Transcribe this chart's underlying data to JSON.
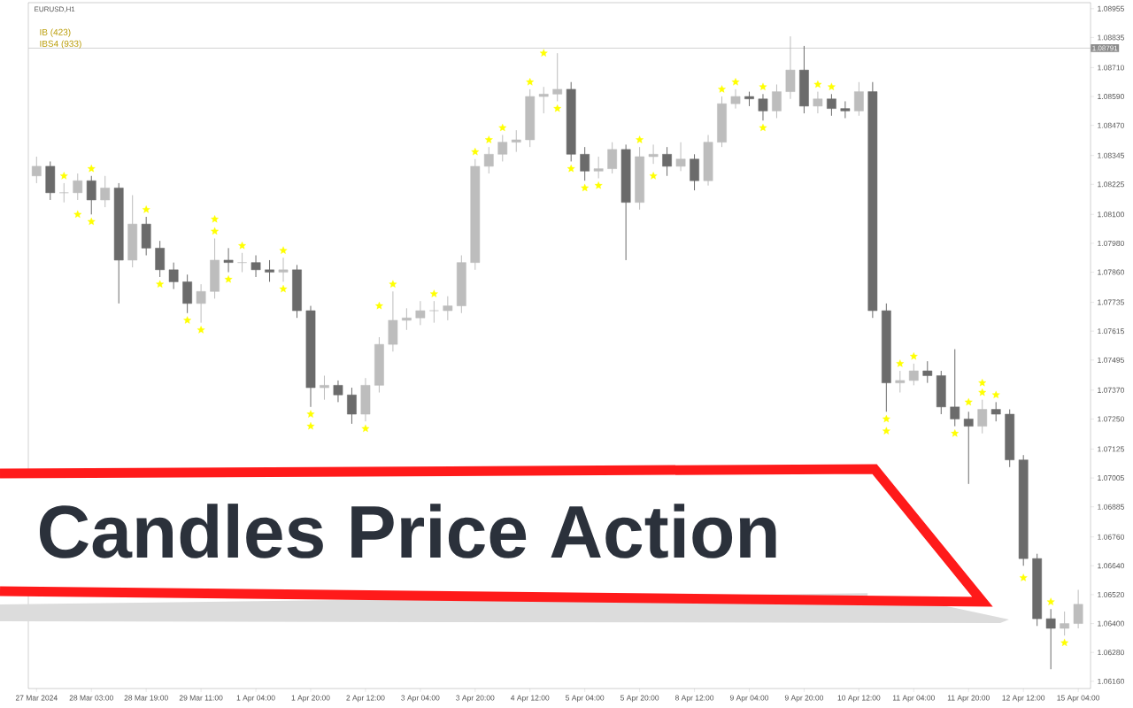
{
  "chart_data": {
    "type": "candlestick",
    "title": "EURUSD,H1",
    "annotations": [
      "IB (423)",
      "IBS4 (933)",
      "Candles Price Action"
    ],
    "categories": [
      "27 Mar 2024",
      null,
      null,
      null,
      "28 Mar 03:00",
      null,
      null,
      null,
      "28 Mar 19:00",
      null,
      null,
      null,
      "29 Mar 11:00",
      null,
      null,
      null,
      "1 Apr 04:00",
      null,
      null,
      null,
      "1 Apr 20:00",
      null,
      null,
      null,
      "2 Apr 12:00",
      null,
      null,
      null,
      "3 Apr 04:00",
      null,
      null,
      null,
      "3 Apr 20:00",
      null,
      null,
      null,
      "4 Apr 12:00",
      null,
      null,
      null,
      "5 Apr 04:00",
      null,
      null,
      null,
      "5 Apr 20:00",
      null,
      null,
      null,
      "8 Apr 12:00",
      null,
      null,
      null,
      "9 Apr 04:00",
      null,
      null,
      null,
      "9 Apr 20:00",
      null,
      null,
      null,
      "10 Apr 12:00",
      null,
      null,
      null,
      "11 Apr 04:00",
      null,
      null,
      null,
      "11 Apr 20:00",
      null,
      null,
      null,
      "12 Apr 12:00",
      null,
      null,
      null,
      "15 Apr 04:00"
    ],
    "ohlc": [
      [
        1.0826,
        1.0834,
        1.0823,
        1.083
      ],
      [
        1.083,
        1.0832,
        1.0816,
        1.0819
      ],
      [
        1.0819,
        1.0823,
        1.0815,
        1.0819
      ],
      [
        1.0819,
        1.0827,
        1.0816,
        1.0824
      ],
      [
        1.0824,
        1.0826,
        1.081,
        1.0816
      ],
      [
        1.0816,
        1.0826,
        1.0813,
        1.0821
      ],
      [
        1.0821,
        1.0823,
        1.0773,
        1.0791
      ],
      [
        1.0791,
        1.0818,
        1.0788,
        1.0806
      ],
      [
        1.0806,
        1.0809,
        1.0793,
        1.0796
      ],
      [
        1.0796,
        1.0799,
        1.0784,
        1.0787
      ],
      [
        1.0787,
        1.079,
        1.0779,
        1.0782
      ],
      [
        1.0782,
        1.0785,
        1.0769,
        1.0773
      ],
      [
        1.0773,
        1.0781,
        1.0765,
        1.0778
      ],
      [
        1.0778,
        1.08,
        1.0775,
        1.0791
      ],
      [
        1.0791,
        1.0796,
        1.0786,
        1.079
      ],
      [
        1.079,
        1.0794,
        1.0786,
        1.079
      ],
      [
        1.079,
        1.0793,
        1.0784,
        1.0787
      ],
      [
        1.0787,
        1.0791,
        1.0782,
        1.0786
      ],
      [
        1.0786,
        1.0792,
        1.0782,
        1.0787
      ],
      [
        1.0787,
        1.0789,
        1.0767,
        1.077
      ],
      [
        1.077,
        1.0772,
        1.073,
        1.0738
      ],
      [
        1.0738,
        1.0743,
        1.0733,
        1.0739
      ],
      [
        1.0739,
        1.0741,
        1.0732,
        1.0735
      ],
      [
        1.0735,
        1.0738,
        1.0723,
        1.0727
      ],
      [
        1.0727,
        1.0742,
        1.0724,
        1.0739
      ],
      [
        1.0739,
        1.0759,
        1.0736,
        1.0756
      ],
      [
        1.0756,
        1.0778,
        1.0753,
        1.0766
      ],
      [
        1.0766,
        1.0771,
        1.0762,
        1.0767
      ],
      [
        1.0767,
        1.0774,
        1.0764,
        1.077
      ],
      [
        1.077,
        1.0774,
        1.0765,
        1.077
      ],
      [
        1.077,
        1.0776,
        1.0766,
        1.0772
      ],
      [
        1.0772,
        1.0793,
        1.0769,
        1.079
      ],
      [
        1.079,
        1.0833,
        1.0787,
        1.083
      ],
      [
        1.083,
        1.0838,
        1.0827,
        1.0835
      ],
      [
        1.0835,
        1.0843,
        1.0832,
        1.084
      ],
      [
        1.084,
        1.0845,
        1.0836,
        1.0841
      ],
      [
        1.0841,
        1.0862,
        1.0838,
        1.0859
      ],
      [
        1.0859,
        1.0863,
        1.0852,
        1.086
      ],
      [
        1.086,
        1.0877,
        1.0857,
        1.0862
      ],
      [
        1.0862,
        1.0865,
        1.0832,
        1.0835
      ],
      [
        1.0835,
        1.0838,
        1.0824,
        1.0828
      ],
      [
        1.0828,
        1.0834,
        1.0825,
        1.0829
      ],
      [
        1.0829,
        1.084,
        1.0827,
        1.0837
      ],
      [
        1.0837,
        1.0839,
        1.0791,
        1.0815
      ],
      [
        1.0815,
        1.0838,
        1.0812,
        1.0834
      ],
      [
        1.0834,
        1.0839,
        1.0831,
        1.0835
      ],
      [
        1.0835,
        1.0838,
        1.0826,
        1.083
      ],
      [
        1.083,
        1.084,
        1.0828,
        1.0833
      ],
      [
        1.0833,
        1.0835,
        1.082,
        1.0824
      ],
      [
        1.0824,
        1.0843,
        1.0822,
        1.084
      ],
      [
        1.084,
        1.0859,
        1.0838,
        1.0856
      ],
      [
        1.0856,
        1.0862,
        1.0854,
        1.0859
      ],
      [
        1.0859,
        1.0861,
        1.0855,
        1.0858
      ],
      [
        1.0858,
        1.086,
        1.0849,
        1.0853
      ],
      [
        1.0853,
        1.0864,
        1.085,
        1.0861
      ],
      [
        1.0861,
        1.0884,
        1.0858,
        1.087
      ],
      [
        1.087,
        1.088,
        1.0852,
        1.0855
      ],
      [
        1.0855,
        1.0861,
        1.0852,
        1.0858
      ],
      [
        1.0858,
        1.086,
        1.0851,
        1.0854
      ],
      [
        1.0854,
        1.0857,
        1.085,
        1.0853
      ],
      [
        1.0853,
        1.0865,
        1.0851,
        1.0861
      ],
      [
        1.0861,
        1.0865,
        1.0767,
        1.077
      ],
      [
        1.077,
        1.0773,
        1.0728,
        1.074
      ],
      [
        1.074,
        1.0745,
        1.0736,
        1.0741
      ],
      [
        1.0741,
        1.0748,
        1.0739,
        1.0745
      ],
      [
        1.0745,
        1.0749,
        1.074,
        1.0743
      ],
      [
        1.0743,
        1.0745,
        1.0727,
        1.073
      ],
      [
        1.073,
        1.0754,
        1.0722,
        1.0725
      ],
      [
        1.0725,
        1.0728,
        1.0698,
        1.0722
      ],
      [
        1.0722,
        1.0733,
        1.0719,
        1.0729
      ],
      [
        1.0729,
        1.0732,
        1.0724,
        1.0727
      ],
      [
        1.0727,
        1.0729,
        1.0705,
        1.0708
      ],
      [
        1.0708,
        1.071,
        1.0664,
        1.0667
      ],
      [
        1.0667,
        1.0669,
        1.0639,
        1.0642
      ],
      [
        1.0642,
        1.0646,
        1.0621,
        1.0638
      ],
      [
        1.0638,
        1.0645,
        1.0635,
        1.064
      ],
      [
        1.064,
        1.0654,
        1.0638,
        1.0648
      ]
    ],
    "series": [
      {
        "type": "scatter",
        "color": "#ffff00",
        "marker": "star",
        "values": [
          null,
          null,
          1.0826,
          1.081,
          1.0807,
          null,
          null,
          null,
          1.0812,
          1.0781,
          null,
          1.0766,
          1.0762,
          1.0803,
          1.0783,
          1.0797,
          null,
          null,
          1.0779,
          null,
          1.0727,
          null,
          null,
          null,
          1.0721,
          1.0772,
          1.0781,
          null,
          null,
          1.0777,
          null,
          null,
          1.0836,
          1.0841,
          1.0846,
          null,
          1.0865,
          1.0877,
          1.0854,
          1.0829,
          1.0821,
          1.0822,
          null,
          null,
          1.0841,
          1.0826,
          null,
          null,
          null,
          null,
          1.0862,
          1.0865,
          null,
          1.0863,
          null,
          null,
          null,
          1.0864,
          1.0863,
          null,
          null,
          null,
          1.0725,
          1.0748,
          1.0751,
          null,
          null,
          1.0719,
          1.0732,
          1.0736,
          1.0735,
          null,
          1.0659,
          null,
          1.0649,
          1.0632,
          null
        ]
      },
      {
        "type": "scatter",
        "color": "#ffff00",
        "marker": "star",
        "values": [
          null,
          null,
          null,
          null,
          1.0829,
          null,
          null,
          null,
          null,
          null,
          null,
          null,
          null,
          1.0808,
          null,
          null,
          null,
          null,
          1.0795,
          null,
          1.0722,
          null,
          null,
          null,
          null,
          null,
          null,
          null,
          null,
          null,
          null,
          null,
          null,
          null,
          null,
          null,
          null,
          null,
          null,
          null,
          null,
          null,
          null,
          null,
          null,
          null,
          null,
          null,
          null,
          null,
          null,
          null,
          null,
          1.0846,
          null,
          null,
          null,
          null,
          null,
          null,
          null,
          null,
          1.072,
          null,
          null,
          null,
          null,
          null,
          null,
          1.074,
          null,
          null,
          null,
          null,
          null,
          null,
          null
        ]
      }
    ],
    "ref_lines": [
      {
        "axis": "y",
        "value": 1.08791,
        "label": "1.08791",
        "color": "#c8c8c8"
      }
    ],
    "ylim": [
      1.0613,
      1.0898
    ],
    "yticks": [
      {
        "value": 1.08955,
        "label": "1.08955"
      },
      {
        "value": 1.08835,
        "label": "1.08835"
      },
      {
        "value": 1.0871,
        "label": "1.08710"
      },
      {
        "value": 1.0859,
        "label": "1.08590"
      },
      {
        "value": 1.0847,
        "label": "1.08470"
      },
      {
        "value": 1.08345,
        "label": "1.08345"
      },
      {
        "value": 1.08225,
        "label": "1.08225"
      },
      {
        "value": 1.081,
        "label": "1.08100"
      },
      {
        "value": 1.0798,
        "label": "1.07980"
      },
      {
        "value": 1.0786,
        "label": "1.07860"
      },
      {
        "value": 1.07735,
        "label": "1.07735"
      },
      {
        "value": 1.07615,
        "label": "1.07615"
      },
      {
        "value": 1.07495,
        "label": "1.07495"
      },
      {
        "value": 1.0737,
        "label": "1.07370"
      },
      {
        "value": 1.0725,
        "label": "1.07250"
      },
      {
        "value": 1.07125,
        "label": "1.07125"
      },
      {
        "value": 1.07005,
        "label": "1.07005"
      },
      {
        "value": 1.06885,
        "label": "1.06885"
      },
      {
        "value": 1.0676,
        "label": "1.06760"
      },
      {
        "value": 1.0664,
        "label": "1.06640"
      },
      {
        "value": 1.0652,
        "label": "1.06520"
      },
      {
        "value": 1.064,
        "label": "1.06400"
      },
      {
        "value": 1.0628,
        "label": "1.06280"
      },
      {
        "value": 1.0616,
        "label": "1.06160"
      }
    ]
  }
}
